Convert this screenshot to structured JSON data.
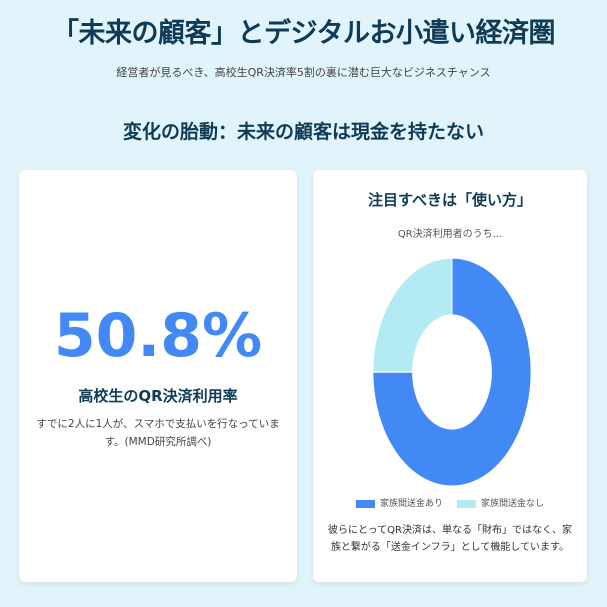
{
  "header": {
    "title": "「未来の顧客」とデジタルお小遣い経済圏",
    "subtitle": "経営者が見るべき、高校生QR決済率5割の裏に潜む巨大なビジネスチャンス"
  },
  "section_title": "変化の胎動：未来の顧客は現金を持たない",
  "stat_card": {
    "value": "50.8%",
    "label": "高校生のQR決済利用率",
    "description": "すでに2人に1人が、スマホで支払いを行なっています。(MMD研究所調べ)"
  },
  "chart_card": {
    "title": "注目すべきは「使い方」",
    "subtitle": "QR決済利用者のうち...",
    "note": "彼らにとってQR決済は、単なる「財布」ではなく、家族と繋がる「送金インフラ」として機能しています。"
  },
  "chart_data": {
    "type": "pie",
    "donut": true,
    "categories": [
      "家族間送金あり",
      "家族間送金なし"
    ],
    "values": [
      75,
      25
    ],
    "colors": [
      "#4289f5",
      "#b2ebf2"
    ],
    "legend": "bottom"
  }
}
